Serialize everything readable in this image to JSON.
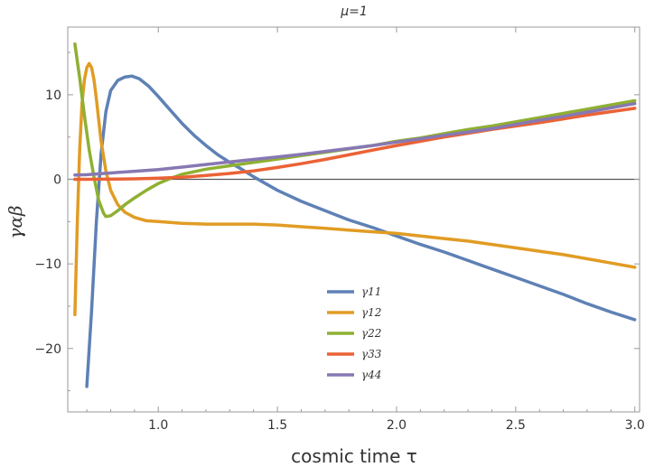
{
  "chart_data": {
    "type": "line",
    "title": "μ=1",
    "xlabel": "cosmic time τ",
    "ylabel": "γαβ",
    "xlim": [
      0.62,
      3.02
    ],
    "ylim": [
      -27.5,
      18.0
    ],
    "x_ticks": [
      "1.0",
      "1.5",
      "2.0",
      "2.5",
      "3.0"
    ],
    "x_tick_values": [
      1.0,
      1.5,
      2.0,
      2.5,
      3.0
    ],
    "y_ticks": [
      "−20",
      "−10",
      "0",
      "10"
    ],
    "y_tick_values": [
      -20,
      -10,
      0,
      10
    ],
    "zero_line": true,
    "grid": false,
    "legend_position": "lower-center",
    "series": [
      {
        "name": "γ11",
        "color": "#5e81b5",
        "points": [
          [
            0.7,
            -24.5
          ],
          [
            0.72,
            -15.5
          ],
          [
            0.74,
            -5
          ],
          [
            0.76,
            3
          ],
          [
            0.78,
            8
          ],
          [
            0.8,
            10.5
          ],
          [
            0.83,
            11.7
          ],
          [
            0.86,
            12.1
          ],
          [
            0.89,
            12.2
          ],
          [
            0.92,
            11.9
          ],
          [
            0.96,
            11.0
          ],
          [
            1.0,
            9.8
          ],
          [
            1.05,
            8.2
          ],
          [
            1.1,
            6.6
          ],
          [
            1.15,
            5.2
          ],
          [
            1.2,
            4.0
          ],
          [
            1.25,
            2.9
          ],
          [
            1.3,
            2.0
          ],
          [
            1.35,
            1.2
          ],
          [
            1.4,
            0.3
          ],
          [
            1.45,
            -0.5
          ],
          [
            1.5,
            -1.3
          ],
          [
            1.6,
            -2.6
          ],
          [
            1.7,
            -3.7
          ],
          [
            1.8,
            -4.8
          ],
          [
            1.9,
            -5.7
          ],
          [
            2.0,
            -6.7
          ],
          [
            2.1,
            -7.7
          ],
          [
            2.2,
            -8.6
          ],
          [
            2.3,
            -9.6
          ],
          [
            2.4,
            -10.6
          ],
          [
            2.5,
            -11.6
          ],
          [
            2.6,
            -12.6
          ],
          [
            2.7,
            -13.6
          ],
          [
            2.8,
            -14.7
          ],
          [
            2.9,
            -15.7
          ],
          [
            3.0,
            -16.6
          ]
        ]
      },
      {
        "name": "γ12",
        "color": "#e19c24",
        "points": [
          [
            0.65,
            -16.0
          ],
          [
            0.66,
            -5.0
          ],
          [
            0.67,
            3.5
          ],
          [
            0.68,
            9.0
          ],
          [
            0.69,
            11.8
          ],
          [
            0.7,
            13.2
          ],
          [
            0.71,
            13.7
          ],
          [
            0.72,
            13.2
          ],
          [
            0.73,
            11.8
          ],
          [
            0.74,
            9.5
          ],
          [
            0.75,
            7.0
          ],
          [
            0.76,
            4.5
          ],
          [
            0.78,
            1.0
          ],
          [
            0.8,
            -1.3
          ],
          [
            0.83,
            -3.0
          ],
          [
            0.86,
            -3.9
          ],
          [
            0.9,
            -4.5
          ],
          [
            0.95,
            -4.9
          ],
          [
            1.0,
            -5.0
          ],
          [
            1.1,
            -5.2
          ],
          [
            1.2,
            -5.3
          ],
          [
            1.3,
            -5.3
          ],
          [
            1.4,
            -5.3
          ],
          [
            1.5,
            -5.4
          ],
          [
            1.6,
            -5.6
          ],
          [
            1.7,
            -5.8
          ],
          [
            1.8,
            -6.0
          ],
          [
            1.9,
            -6.2
          ],
          [
            2.0,
            -6.4
          ],
          [
            2.1,
            -6.7
          ],
          [
            2.2,
            -7.0
          ],
          [
            2.3,
            -7.3
          ],
          [
            2.4,
            -7.7
          ],
          [
            2.5,
            -8.1
          ],
          [
            2.6,
            -8.5
          ],
          [
            2.7,
            -8.9
          ],
          [
            2.8,
            -9.4
          ],
          [
            2.9,
            -9.9
          ],
          [
            3.0,
            -10.4
          ]
        ]
      },
      {
        "name": "γ22",
        "color": "#8fb032",
        "points": [
          [
            0.65,
            16.0
          ],
          [
            0.67,
            12.0
          ],
          [
            0.69,
            7.5
          ],
          [
            0.71,
            3.5
          ],
          [
            0.73,
            0.3
          ],
          [
            0.75,
            -2.5
          ],
          [
            0.77,
            -4.0
          ],
          [
            0.78,
            -4.4
          ],
          [
            0.8,
            -4.3
          ],
          [
            0.83,
            -3.7
          ],
          [
            0.86,
            -3.0
          ],
          [
            0.9,
            -2.2
          ],
          [
            0.95,
            -1.3
          ],
          [
            1.0,
            -0.5
          ],
          [
            1.05,
            0.1
          ],
          [
            1.1,
            0.6
          ],
          [
            1.2,
            1.2
          ],
          [
            1.3,
            1.6
          ],
          [
            1.4,
            2.0
          ],
          [
            1.5,
            2.4
          ],
          [
            1.6,
            2.8
          ],
          [
            1.7,
            3.2
          ],
          [
            1.8,
            3.6
          ],
          [
            1.9,
            4.0
          ],
          [
            2.0,
            4.5
          ],
          [
            2.1,
            4.9
          ],
          [
            2.2,
            5.4
          ],
          [
            2.3,
            5.9
          ],
          [
            2.4,
            6.3
          ],
          [
            2.5,
            6.8
          ],
          [
            2.6,
            7.3
          ],
          [
            2.7,
            7.8
          ],
          [
            2.8,
            8.3
          ],
          [
            2.9,
            8.8
          ],
          [
            3.0,
            9.3
          ]
        ]
      },
      {
        "name": "γ33",
        "color": "#eb6235",
        "points": [
          [
            0.65,
            0.0
          ],
          [
            0.7,
            0.0
          ],
          [
            0.8,
            0.02
          ],
          [
            0.9,
            0.06
          ],
          [
            1.0,
            0.13
          ],
          [
            1.1,
            0.25
          ],
          [
            1.2,
            0.45
          ],
          [
            1.3,
            0.7
          ],
          [
            1.4,
            1.0
          ],
          [
            1.5,
            1.4
          ],
          [
            1.6,
            1.85
          ],
          [
            1.7,
            2.35
          ],
          [
            1.8,
            2.9
          ],
          [
            1.9,
            3.45
          ],
          [
            2.0,
            4.0
          ],
          [
            2.1,
            4.5
          ],
          [
            2.2,
            5.0
          ],
          [
            2.3,
            5.45
          ],
          [
            2.4,
            5.9
          ],
          [
            2.5,
            6.3
          ],
          [
            2.6,
            6.7
          ],
          [
            2.7,
            7.15
          ],
          [
            2.8,
            7.6
          ],
          [
            2.9,
            8.0
          ],
          [
            3.0,
            8.4
          ]
        ]
      },
      {
        "name": "γ44",
        "color": "#8778b3",
        "points": [
          [
            0.65,
            0.5
          ],
          [
            0.7,
            0.55
          ],
          [
            0.8,
            0.75
          ],
          [
            0.9,
            0.95
          ],
          [
            1.0,
            1.15
          ],
          [
            1.1,
            1.45
          ],
          [
            1.2,
            1.75
          ],
          [
            1.3,
            2.05
          ],
          [
            1.4,
            2.35
          ],
          [
            1.5,
            2.65
          ],
          [
            1.6,
            2.95
          ],
          [
            1.7,
            3.3
          ],
          [
            1.8,
            3.65
          ],
          [
            1.9,
            4.0
          ],
          [
            2.0,
            4.4
          ],
          [
            2.1,
            4.8
          ],
          [
            2.2,
            5.2
          ],
          [
            2.3,
            5.6
          ],
          [
            2.4,
            6.0
          ],
          [
            2.5,
            6.5
          ],
          [
            2.6,
            7.0
          ],
          [
            2.7,
            7.45
          ],
          [
            2.8,
            7.95
          ],
          [
            2.9,
            8.45
          ],
          [
            3.0,
            8.95
          ]
        ]
      }
    ]
  }
}
